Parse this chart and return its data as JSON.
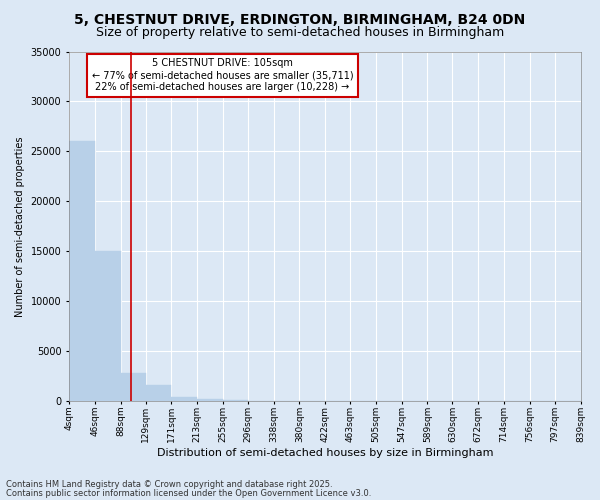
{
  "title_line1": "5, CHESTNUT DRIVE, ERDINGTON, BIRMINGHAM, B24 0DN",
  "title_line2": "Size of property relative to semi-detached houses in Birmingham",
  "xlabel": "Distribution of semi-detached houses by size in Birmingham",
  "ylabel": "Number of semi-detached properties",
  "footnote1": "Contains HM Land Registry data © Crown copyright and database right 2025.",
  "footnote2": "Contains public sector information licensed under the Open Government Licence v3.0.",
  "annotation_title": "5 CHESTNUT DRIVE: 105sqm",
  "annotation_line2": "← 77% of semi-detached houses are smaller (35,711)",
  "annotation_line3": "22% of semi-detached houses are larger (10,228) →",
  "property_size_sqm": 105,
  "bin_edges": [
    4,
    46,
    88,
    129,
    171,
    213,
    255,
    296,
    338,
    380,
    422,
    463,
    505,
    547,
    589,
    630,
    672,
    714,
    756,
    797,
    839
  ],
  "bin_counts": [
    26000,
    15000,
    2800,
    1600,
    400,
    200,
    100,
    50,
    30,
    20,
    15,
    10,
    8,
    6,
    5,
    4,
    3,
    2,
    2,
    1
  ],
  "bar_color": "#b8d0e8",
  "vline_color": "#cc0000",
  "vline_x": 105,
  "annotation_box_edge": "#cc0000",
  "annotation_box_face": "#ffffff",
  "background_color": "#dce8f5",
  "plot_bg_color": "#dce8f5",
  "ylim": [
    0,
    35000
  ],
  "yticks": [
    0,
    5000,
    10000,
    15000,
    20000,
    25000,
    30000,
    35000
  ],
  "grid_color": "#ffffff",
  "title_fontsize": 10,
  "subtitle_fontsize": 9,
  "footnote_fontsize": 6,
  "ylabel_fontsize": 7,
  "xlabel_fontsize": 8,
  "tick_fontsize": 6.5,
  "annot_fontsize": 7
}
